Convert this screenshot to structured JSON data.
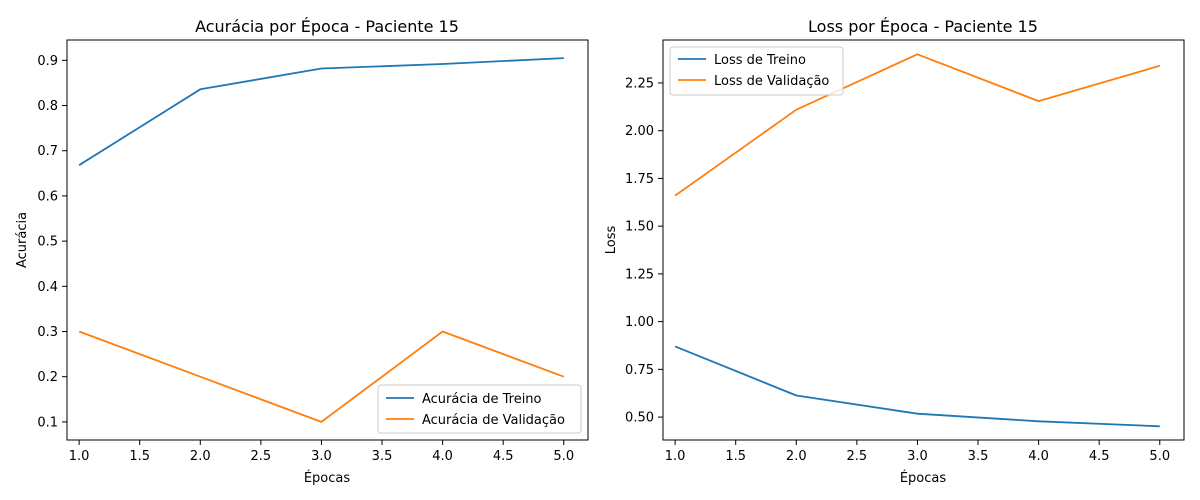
{
  "colors": {
    "train": "#1f77b4",
    "val": "#ff7f0e"
  },
  "chart_data": [
    {
      "type": "line",
      "title": "Acurácia por Época - Paciente 15",
      "xlabel": "Épocas",
      "ylabel": "Acurácia",
      "x": [
        1,
        2,
        3,
        4,
        5
      ],
      "xlim": [
        0.9,
        5.2
      ],
      "ylim": [
        0.06,
        0.945
      ],
      "xticks": [
        1.0,
        1.5,
        2.0,
        2.5,
        3.0,
        3.5,
        4.0,
        4.5,
        5.0
      ],
      "xtick_labels": [
        "1.0",
        "1.5",
        "2.0",
        "2.5",
        "3.0",
        "3.5",
        "4.0",
        "4.5",
        "5.0"
      ],
      "yticks": [
        0.1,
        0.2,
        0.3,
        0.4,
        0.5,
        0.6,
        0.7,
        0.8,
        0.9
      ],
      "ytick_labels": [
        "0.1",
        "0.2",
        "0.3",
        "0.4",
        "0.5",
        "0.6",
        "0.7",
        "0.8",
        "0.9"
      ],
      "legend_position": "lower-right",
      "series": [
        {
          "name": "Acurácia de Treino",
          "color_key": "train",
          "values": [
            0.668,
            0.836,
            0.882,
            0.892,
            0.905
          ]
        },
        {
          "name": "Acurácia de Validação",
          "color_key": "val",
          "values": [
            0.3,
            0.2,
            0.1,
            0.3,
            0.2
          ]
        }
      ]
    },
    {
      "type": "line",
      "title": "Loss por Época - Paciente 15",
      "xlabel": "Épocas",
      "ylabel": "Loss",
      "x": [
        1,
        2,
        3,
        4,
        5
      ],
      "xlim": [
        0.9,
        5.2
      ],
      "ylim": [
        0.38,
        2.475
      ],
      "xticks": [
        1.0,
        1.5,
        2.0,
        2.5,
        3.0,
        3.5,
        4.0,
        4.5,
        5.0
      ],
      "xtick_labels": [
        "1.0",
        "1.5",
        "2.0",
        "2.5",
        "3.0",
        "3.5",
        "4.0",
        "4.5",
        "5.0"
      ],
      "yticks": [
        0.5,
        0.75,
        1.0,
        1.25,
        1.5,
        1.75,
        2.0,
        2.25
      ],
      "ytick_labels": [
        "0.50",
        "0.75",
        "1.00",
        "1.25",
        "1.50",
        "1.75",
        "2.00",
        "2.25"
      ],
      "legend_position": "upper-left",
      "series": [
        {
          "name": "Loss de Treino",
          "color_key": "train",
          "values": [
            0.87,
            0.613,
            0.518,
            0.478,
            0.452
          ]
        },
        {
          "name": "Loss de Validação",
          "color_key": "val",
          "values": [
            1.66,
            2.11,
            2.4,
            2.155,
            2.34
          ]
        }
      ]
    }
  ]
}
